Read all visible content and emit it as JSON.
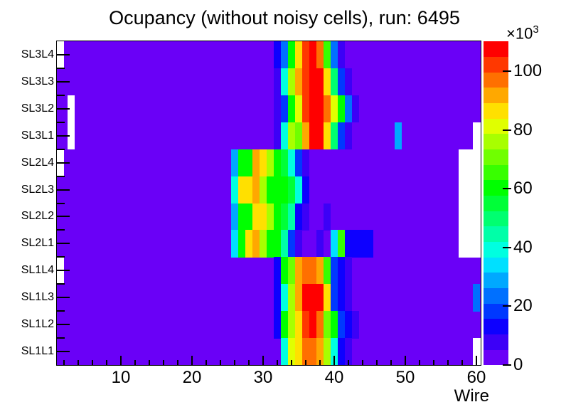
{
  "page": {
    "background": "#ffffff"
  },
  "chart_data": {
    "type": "heatmap",
    "title": "Ocupancy (without noisy cells), run: 6495",
    "xlabel": "Wire",
    "x_major_ticks": [
      10,
      20,
      30,
      40,
      50,
      60
    ],
    "x_minor_tick_step": 2,
    "x_range_wires": [
      1,
      61
    ],
    "y_categories_top_to_bottom": [
      "SL3L4",
      "SL3L3",
      "SL3L2",
      "SL3L1",
      "SL2L4",
      "SL2L3",
      "SL2L2",
      "SL2L1",
      "SL1L4",
      "SL1L3",
      "SL1L2",
      "SL1L1"
    ],
    "grid": false,
    "legend_position": "right-colorbar",
    "colorbar": {
      "power_label_base": "×10",
      "power_label_exp": "3",
      "tick_values_thousands": [
        0,
        20,
        40,
        60,
        80,
        100
      ],
      "max_value_thousands": 110.25,
      "band_size_thousands": 5.25
    },
    "palette": [
      "#6a00f7",
      "#3c00f7",
      "#0d00ff",
      "#0038ff",
      "#0070ff",
      "#00a8ff",
      "#00e0ff",
      "#00ffe0",
      "#00ffa8",
      "#00ff70",
      "#00ff38",
      "#00ff00",
      "#38ff00",
      "#70ff00",
      "#a8ff00",
      "#e0ff00",
      "#ffe000",
      "#ffa800",
      "#ff7000",
      "#ff3800",
      "#ff0000"
    ],
    "background_band_index": 0,
    "white_means_empty": true,
    "cell_value_note": "cells map wire number to palette band index; occupancy ≈ (index+0.5)×5250 counts",
    "rows": [
      {
        "label": "SL3L4",
        "cells": {
          "32": 2,
          "33": 4,
          "34": 11,
          "35": 16,
          "36": 19,
          "37": 20,
          "38": 18,
          "39": 12,
          "40": 4,
          "41": 1
        },
        "white": [
          1
        ]
      },
      {
        "label": "SL3L3",
        "cells": {
          "32": 1,
          "33": 7,
          "34": 14,
          "35": 17,
          "36": 19,
          "37": 20,
          "38": 20,
          "39": 16,
          "40": 9,
          "41": 3,
          "42": 1
        },
        "white": []
      },
      {
        "label": "SL3L2",
        "cells": {
          "32": 1,
          "33": 3,
          "34": 11,
          "35": 15,
          "36": 19,
          "37": 20,
          "38": 20,
          "39": 18,
          "40": 15,
          "41": 11,
          "42": 4,
          "43": 1
        },
        "white": [
          3
        ]
      },
      {
        "label": "SL3L1",
        "cells": {
          "32": 1,
          "33": 7,
          "34": 14,
          "35": 13,
          "36": 17,
          "37": 20,
          "38": 20,
          "39": 16,
          "40": 9,
          "41": 3,
          "42": 1,
          "49": 5
        },
        "white": [
          3,
          60
        ]
      },
      {
        "label": "SL2L4",
        "cells": {
          "26": 5,
          "27": 11,
          "28": 11,
          "29": 17,
          "30": 16,
          "31": 14,
          "32": 11,
          "33": 10,
          "34": 7,
          "35": 3,
          "36": 1
        },
        "white": [
          1,
          58,
          59,
          60
        ]
      },
      {
        "label": "SL2L3",
        "cells": {
          "26": 7,
          "27": 16,
          "28": 16,
          "29": 17,
          "30": 14,
          "31": 11,
          "32": 11,
          "33": 11,
          "34": 10,
          "35": 7,
          "36": 2
        },
        "white": [
          58,
          59,
          60
        ]
      },
      {
        "label": "SL2L2",
        "cells": {
          "26": 5,
          "27": 11,
          "28": 11,
          "29": 16,
          "30": 16,
          "31": 14,
          "32": 11,
          "33": 10,
          "34": 8,
          "35": 2,
          "36": 1,
          "39": 1
        },
        "white": [
          58,
          59,
          60
        ]
      },
      {
        "label": "SL2L1",
        "cells": {
          "26": 6,
          "27": 11,
          "28": 16,
          "29": 17,
          "30": 14,
          "31": 11,
          "32": 11,
          "33": 8,
          "34": 3,
          "35": 1,
          "38": 1,
          "40": 6,
          "41": 12,
          "42": 2,
          "43": 2,
          "44": 2,
          "45": 2
        },
        "white": [
          58,
          59,
          60
        ]
      },
      {
        "label": "SL1L4",
        "cells": {
          "32": 2,
          "33": 11,
          "34": 13,
          "35": 17,
          "36": 18,
          "37": 18,
          "38": 17,
          "39": 12,
          "40": 3,
          "41": 2,
          "42": 1
        },
        "white": [
          1
        ]
      },
      {
        "label": "SL1L3",
        "cells": {
          "32": 2,
          "33": 7,
          "34": 14,
          "35": 17,
          "36": 20,
          "37": 20,
          "38": 20,
          "39": 16,
          "40": 3,
          "41": 2,
          "42": 1,
          "60": 4
        },
        "white": []
      },
      {
        "label": "SL1L2",
        "cells": {
          "32": 2,
          "33": 11,
          "34": 14,
          "35": 16,
          "36": 19,
          "37": 20,
          "38": 18,
          "39": 13,
          "40": 11,
          "41": 3,
          "42": 2,
          "43": 1
        },
        "white": []
      },
      {
        "label": "SL1L1",
        "cells": {
          "33": 7,
          "34": 15,
          "35": 16,
          "36": 18,
          "37": 18,
          "38": 17,
          "39": 14,
          "40": 7,
          "41": 2,
          "42": 1
        },
        "white": [
          60
        ]
      }
    ]
  }
}
